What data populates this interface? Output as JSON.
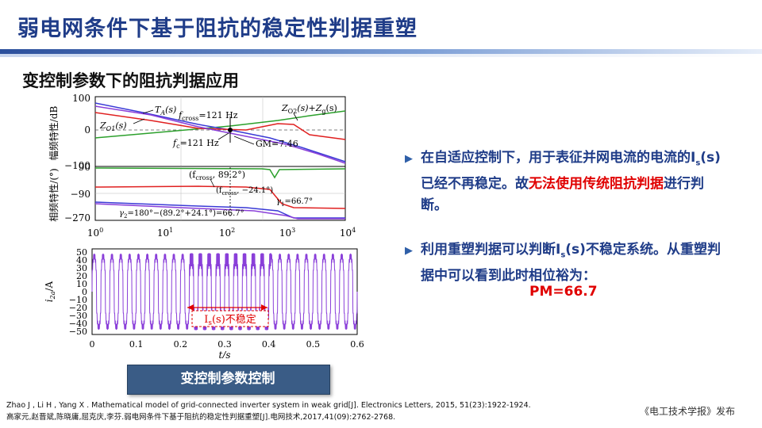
{
  "title": "弱电网条件下基于阻抗的稳定性判据重塑",
  "subtitle": "变控制参数下的阻抗判据应用",
  "figure": {
    "bode_mag": {
      "ylabel": "幅频特性/dB",
      "yticks": [
        "100",
        "0",
        "−100"
      ],
      "labels": {
        "ta": "T",
        "ta_sub": "A",
        "ta_tail": "(s)",
        "zo1": "Z",
        "zo1_sub": "O1",
        "zo1_tail": "(s)",
        "fcross": "f",
        "fcross_sub": "cross",
        "fcross_val": "=121 Hz",
        "zo2": "Z",
        "zo2_sub": "O2",
        "zo2_mid": "(s)+Z",
        "zo2_sub2": "g",
        "zo2_tail": "(s)",
        "fc": "f",
        "fc_sub": "c",
        "fc_val": "=121 Hz",
        "gm": "GM=7.46"
      }
    },
    "bode_phase": {
      "ylabel": "相频特性/(°)",
      "yticks": [
        "90",
        "−90",
        "−270"
      ],
      "labels": {
        "p1": "(f",
        "p1_sub": "cross",
        "p1_val": ", 89.2°)",
        "p2": "(f",
        "p2_sub": "cross",
        "p2_val": ", −24.1°)",
        "g1": "γ",
        "g1_sub": "1",
        "g1_val": "=66.7°",
        "g2": "γ",
        "g2_sub": "2",
        "g2_val": "=180°−(89.2°+24.1°)=66.7°"
      },
      "xticks": [
        "10",
        "10",
        "10",
        "10",
        "10"
      ],
      "xtick_exps": [
        "0",
        "1",
        "2",
        "3",
        "4"
      ]
    },
    "time": {
      "ylabel": "i",
      "ylabel_sub": "2a",
      "ylabel_unit": "/A",
      "yticks": [
        "50",
        "40",
        "30",
        "20",
        "10",
        "0",
        "−10",
        "−20",
        "−30",
        "−40",
        "−50"
      ],
      "xticks": [
        "0",
        "0.1",
        "0.2",
        "0.3",
        "0.4",
        "0.5",
        "0.6"
      ],
      "xlabel": "t/s",
      "annotation": "I",
      "annotation_sub": "s",
      "annotation_tail": "(s)不稳定"
    }
  },
  "caption": "变控制参数控制",
  "bullet1": {
    "part1": "在自适应控制下，用于表征并网电流的电流的I",
    "sub": "s",
    "part2": "(s)已经不再稳定。故",
    "red": "无法使用传统阻抗判据",
    "part3": "进行判断。"
  },
  "bullet2": {
    "part1": "利用重塑判据可以判断I",
    "sub": "s",
    "part2": "(s)不稳定系统。从重塑判据中可以看到此时相位裕为：",
    "pm": "PM=66.7"
  },
  "references": [
    "Zhao J , Li H , Yang X . Mathematical model of grid-connected inverter system in weak grid[J]. Electronics Letters, 2015, 51(23):1922-1924.",
    "高家元,赵晋斌,陈晓庸,屈克庆,李芬.弱电网条件下基于阻抗的稳定性判据重塑[J].电网技术,2017,41(09):2762-2768."
  ],
  "publisher": "《电工技术学报》发布",
  "colors": {
    "title": "#1f3c88",
    "red": "#e00000",
    "green": "#2ca02c",
    "blue": "#3a3ad6",
    "purple": "#7b3fd0",
    "plot_purple": "#8a3fd9"
  }
}
